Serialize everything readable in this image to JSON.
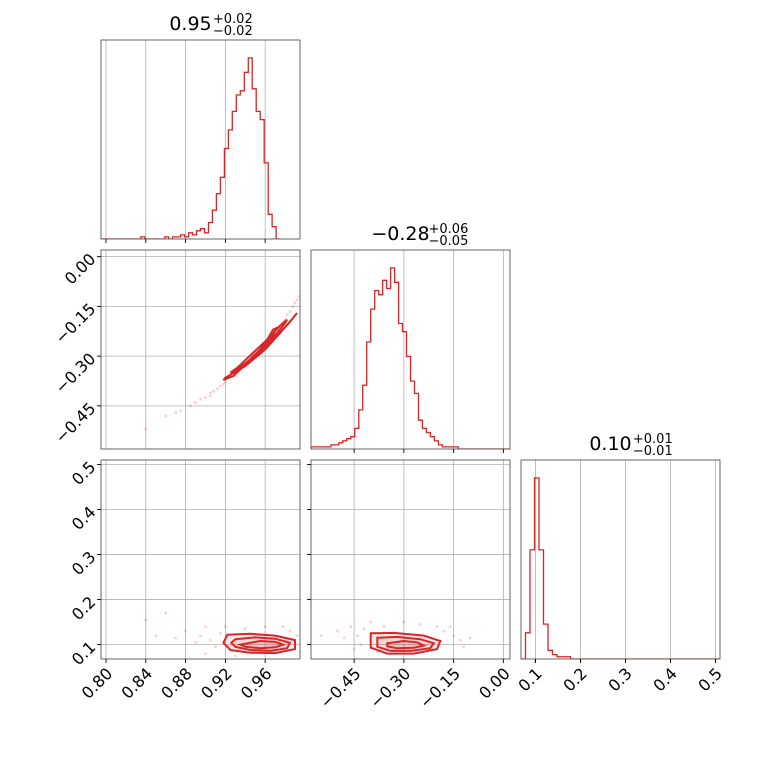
{
  "chart_data": {
    "type": "corner",
    "color": "#d62728",
    "parameters": [
      {
        "id": "p0",
        "title": {
          "median": "0.95",
          "upper": "+0.02",
          "lower": "−0.02"
        },
        "axis_range": [
          0.795,
          0.995
        ],
        "ticks": [
          0.8,
          0.84,
          0.88,
          0.92,
          0.96
        ],
        "tick_labels": [
          "0.80",
          "0.84",
          "0.88",
          "0.92",
          "0.96"
        ],
        "hist_bin_edges_start": 0.795,
        "hist_bin_width": 0.004,
        "hist_counts": [
          0,
          0,
          0,
          0,
          0,
          0,
          0,
          0,
          0,
          0,
          1,
          0,
          0,
          0,
          0,
          0,
          1,
          0,
          1,
          1,
          2,
          1,
          3,
          2,
          4,
          5,
          3,
          8,
          14,
          22,
          30,
          44,
          53,
          62,
          70,
          72,
          81,
          88,
          73,
          62,
          58,
          37,
          12,
          6,
          0
        ]
      },
      {
        "id": "p1",
        "title": {
          "median": "−0.28",
          "upper": "+0.06",
          "lower": "−0.05"
        },
        "axis_range": [
          -0.58,
          0.02
        ],
        "ticks": [
          -0.45,
          -0.3,
          -0.15,
          0.0
        ],
        "tick_labels": [
          "−0.45",
          "−0.30",
          "−0.15",
          "0.00"
        ],
        "hist_bin_edges_start": -0.58,
        "hist_bin_width": 0.012,
        "hist_counts": [
          1,
          1,
          1,
          1,
          1,
          2,
          2,
          3,
          4,
          5,
          6,
          10,
          19,
          31,
          52,
          68,
          77,
          75,
          82,
          78,
          88,
          81,
          61,
          57,
          45,
          33,
          27,
          14,
          10,
          8,
          6,
          4,
          2,
          1,
          1,
          1,
          1,
          0,
          0,
          0,
          0,
          0,
          0,
          0,
          0,
          0,
          0,
          0,
          0,
          0
        ]
      },
      {
        "id": "p2",
        "title": {
          "median": "0.10",
          "upper": "+0.01",
          "lower": "−0.01"
        },
        "axis_range": [
          0.068,
          0.51
        ],
        "ticks": [
          0.1,
          0.2,
          0.3,
          0.4,
          0.5
        ],
        "tick_labels": [
          "0.1",
          "0.2",
          "0.3",
          "0.4",
          "0.5"
        ],
        "hist_bin_edges_start": 0.068,
        "hist_bin_width": 0.01,
        "hist_counts": [
          0,
          12,
          50,
          83,
          50,
          16,
          4,
          2,
          1,
          1,
          1,
          0,
          0,
          0,
          0,
          0,
          0,
          0,
          0,
          0,
          0,
          0,
          0,
          0,
          0,
          0,
          0,
          0,
          0,
          0,
          0,
          0,
          0,
          0,
          0,
          0,
          0,
          0,
          0,
          0,
          0,
          0,
          0,
          0,
          0
        ]
      }
    ],
    "pairs": [
      {
        "x": "p0",
        "y": "p1",
        "contours": [
          {
            "level": "inner",
            "x": [
              0.948,
              0.955,
              0.962,
              0.968,
              0.972,
              0.968,
              0.96,
              0.952,
              0.946,
              0.944,
              0.948
            ],
            "y": [
              -0.3,
              -0.28,
              -0.25,
              -0.22,
              -0.215,
              -0.235,
              -0.262,
              -0.29,
              -0.31,
              -0.312,
              -0.3
            ]
          },
          {
            "level": "mid",
            "x": [
              0.93,
              0.945,
              0.96,
              0.972,
              0.98,
              0.982,
              0.976,
              0.962,
              0.946,
              0.932,
              0.925,
              0.93
            ],
            "y": [
              -0.345,
              -0.31,
              -0.27,
              -0.23,
              -0.2,
              -0.19,
              -0.205,
              -0.25,
              -0.295,
              -0.335,
              -0.35,
              -0.345
            ]
          },
          {
            "level": "outer",
            "x": [
              0.92,
              0.94,
              0.96,
              0.975,
              0.988,
              0.992,
              0.984,
              0.966,
              0.946,
              0.928,
              0.918,
              0.92
            ],
            "y": [
              -0.365,
              -0.33,
              -0.28,
              -0.23,
              -0.185,
              -0.17,
              -0.2,
              -0.255,
              -0.31,
              -0.36,
              -0.372,
              -0.365
            ]
          }
        ],
        "samples": [
          [
            0.86,
            -0.48
          ],
          [
            0.875,
            -0.465
          ],
          [
            0.885,
            -0.45
          ],
          [
            0.89,
            -0.44
          ],
          [
            0.895,
            -0.43
          ],
          [
            0.9,
            -0.425
          ],
          [
            0.905,
            -0.41
          ],
          [
            0.908,
            -0.405
          ],
          [
            0.912,
            -0.398
          ],
          [
            0.915,
            -0.39
          ],
          [
            0.918,
            -0.385
          ],
          [
            0.92,
            -0.378
          ],
          [
            0.985,
            -0.165
          ],
          [
            0.988,
            -0.15
          ],
          [
            0.99,
            -0.14
          ],
          [
            0.992,
            -0.13
          ],
          [
            0.994,
            -0.12
          ],
          [
            0.996,
            -0.1
          ],
          [
            0.997,
            -0.09
          ],
          [
            0.84,
            -0.52
          ],
          [
            0.87,
            -0.47
          ],
          [
            0.93,
            -0.36
          ],
          [
            0.98,
            -0.19
          ],
          [
            0.982,
            -0.175
          ],
          [
            0.905,
            -0.42
          ]
        ]
      },
      {
        "x": "p0",
        "y": "p2",
        "contours": [
          {
            "level": "inner",
            "x": [
              0.94,
              0.955,
              0.97,
              0.978,
              0.97,
              0.955,
              0.94,
              0.935,
              0.94
            ],
            "y": [
              0.102,
              0.108,
              0.106,
              0.1,
              0.094,
              0.092,
              0.095,
              0.1,
              0.102
            ]
          },
          {
            "level": "mid",
            "x": [
              0.93,
              0.95,
              0.97,
              0.985,
              0.982,
              0.965,
              0.945,
              0.93,
              0.926,
              0.93
            ],
            "y": [
              0.112,
              0.116,
              0.113,
              0.104,
              0.092,
              0.086,
              0.088,
              0.095,
              0.104,
              0.112
            ]
          },
          {
            "level": "outer",
            "x": [
              0.922,
              0.945,
              0.97,
              0.99,
              0.99,
              0.97,
              0.945,
              0.925,
              0.918,
              0.922
            ],
            "y": [
              0.122,
              0.124,
              0.12,
              0.11,
              0.09,
              0.081,
              0.082,
              0.088,
              0.104,
              0.122
            ]
          }
        ],
        "samples": [
          [
            0.86,
            0.17
          ],
          [
            0.84,
            0.155
          ],
          [
            0.88,
            0.13
          ],
          [
            0.895,
            0.12
          ],
          [
            0.905,
            0.11
          ],
          [
            0.91,
            0.095
          ],
          [
            0.9,
            0.14
          ],
          [
            0.915,
            0.125
          ],
          [
            0.89,
            0.105
          ],
          [
            0.992,
            0.12
          ],
          [
            0.985,
            0.13
          ],
          [
            0.978,
            0.14
          ],
          [
            0.96,
            0.14
          ],
          [
            0.94,
            0.135
          ],
          [
            0.92,
            0.14
          ],
          [
            0.87,
            0.115
          ],
          [
            0.85,
            0.12
          ],
          [
            0.995,
            0.085
          ],
          [
            0.9,
            0.08
          ],
          [
            0.93,
            0.075
          ]
        ]
      },
      {
        "x": "p1",
        "y": "p2",
        "contours": [
          {
            "level": "inner",
            "x": [
              -0.35,
              -0.3,
              -0.26,
              -0.24,
              -0.27,
              -0.32,
              -0.35,
              -0.35
            ],
            "y": [
              0.103,
              0.108,
              0.105,
              0.098,
              0.093,
              0.092,
              0.096,
              0.103
            ]
          },
          {
            "level": "mid",
            "x": [
              -0.38,
              -0.32,
              -0.25,
              -0.21,
              -0.22,
              -0.28,
              -0.34,
              -0.38,
              -0.38
            ],
            "y": [
              0.115,
              0.117,
              0.112,
              0.103,
              0.092,
              0.086,
              0.086,
              0.095,
              0.115
            ]
          },
          {
            "level": "outer",
            "x": [
              -0.4,
              -0.33,
              -0.24,
              -0.19,
              -0.2,
              -0.27,
              -0.35,
              -0.4,
              -0.4
            ],
            "y": [
              0.125,
              0.126,
              0.12,
              0.108,
              0.09,
              0.08,
              0.08,
              0.093,
              0.125
            ]
          }
        ],
        "samples": [
          [
            -0.5,
            0.13
          ],
          [
            -0.46,
            0.14
          ],
          [
            -0.44,
            0.12
          ],
          [
            -0.42,
            0.135
          ],
          [
            -0.48,
            0.115
          ],
          [
            -0.4,
            0.15
          ],
          [
            -0.36,
            0.14
          ],
          [
            -0.15,
            0.12
          ],
          [
            -0.13,
            0.11
          ],
          [
            -0.1,
            0.115
          ],
          [
            -0.12,
            0.095
          ],
          [
            -0.16,
            0.14
          ],
          [
            -0.43,
            0.1
          ],
          [
            -0.45,
            0.09
          ],
          [
            -0.38,
            0.085
          ],
          [
            -0.2,
            0.14
          ],
          [
            -0.18,
            0.13
          ],
          [
            -0.55,
            0.12
          ],
          [
            -0.3,
            0.15
          ],
          [
            -0.25,
            0.145
          ]
        ]
      }
    ]
  }
}
